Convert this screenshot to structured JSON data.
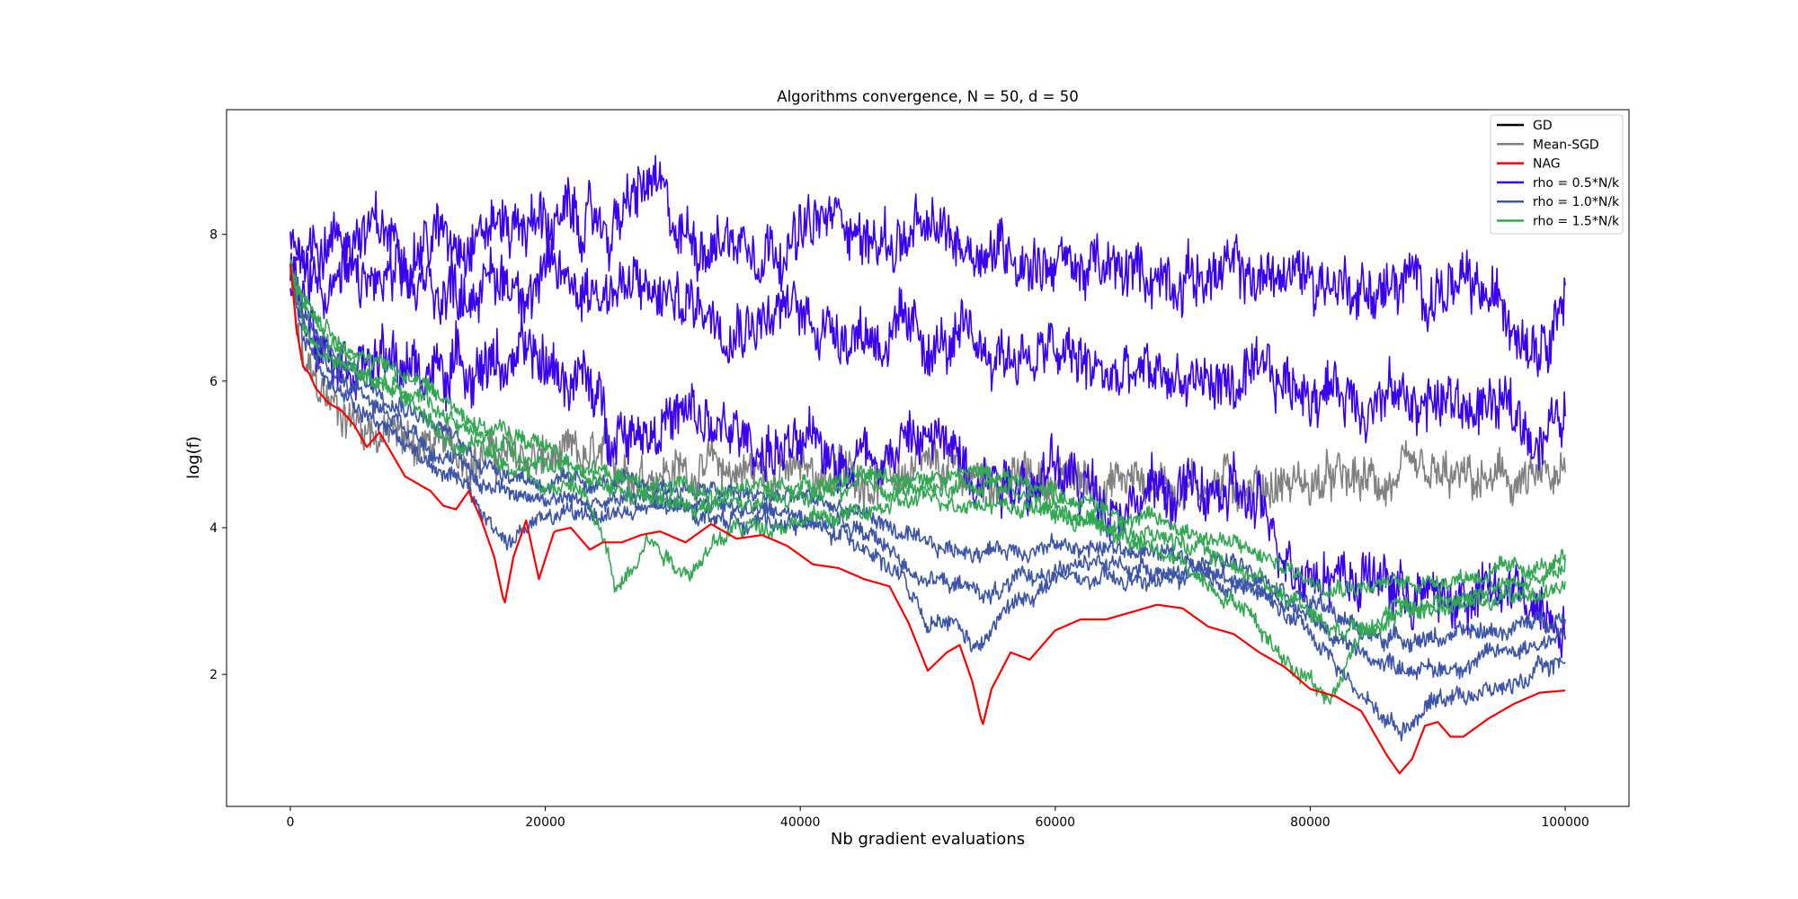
{
  "chart_data": {
    "type": "line",
    "title": "Algorithms convergence, N = 50, d = 50",
    "xlabel": "Nb gradient evaluations",
    "ylabel": "log(f)",
    "xlim": [
      -5000,
      105000
    ],
    "ylim": [
      0.2,
      9.7
    ],
    "xticks": [
      0,
      20000,
      40000,
      60000,
      80000,
      100000
    ],
    "xtick_labels": [
      "0",
      "20000",
      "40000",
      "60000",
      "80000",
      "100000"
    ],
    "yticks": [
      2,
      4,
      6,
      8
    ],
    "ytick_labels": [
      "2",
      "4",
      "6",
      "8"
    ],
    "grid": false,
    "legend_position": "top-right",
    "series": [
      {
        "name": "GD",
        "color": "#000000",
        "x": [],
        "y": []
      },
      {
        "name": "Mean-SGD",
        "color": "#808080",
        "x": [
          0,
          500,
          1000,
          2000,
          3000,
          5000,
          7000,
          10000,
          15000,
          20000,
          25000,
          30000,
          40000,
          50000,
          60000,
          70000,
          80000,
          90000,
          100000
        ],
        "y": [
          7.6,
          6.6,
          6.2,
          5.9,
          5.7,
          5.5,
          5.3,
          5.15,
          5.0,
          4.9,
          4.85,
          4.8,
          4.75,
          4.7,
          4.65,
          4.62,
          4.6,
          4.6,
          4.6
        ]
      },
      {
        "name": "NAG",
        "color": "#ff0000",
        "x": [
          0,
          500,
          1000,
          1500,
          2000,
          3000,
          4000,
          5000,
          6000,
          7000,
          8000,
          9000,
          10000,
          11000,
          12000,
          13000,
          14000,
          15000,
          16000,
          16800,
          17500,
          18500,
          19500,
          20700,
          22000,
          23500,
          24500,
          26000,
          27500,
          29000,
          31000,
          33000,
          35000,
          37000,
          39000,
          41000,
          43000,
          45000,
          47000,
          48500,
          50000,
          51500,
          52500,
          53500,
          54300,
          55000,
          56500,
          58000,
          60000,
          62000,
          64000,
          66000,
          68000,
          70000,
          72000,
          74000,
          76000,
          78000,
          80000,
          82000,
          84000,
          86000,
          87000,
          88000,
          89000,
          90000,
          91000,
          92000,
          94000,
          96000,
          98000,
          100000
        ],
        "y": [
          7.6,
          6.7,
          6.2,
          6.1,
          5.9,
          5.7,
          5.6,
          5.4,
          5.1,
          5.3,
          5.0,
          4.7,
          4.6,
          4.5,
          4.3,
          4.25,
          4.5,
          4.1,
          3.6,
          2.95,
          3.6,
          4.1,
          3.3,
          3.95,
          4.0,
          3.7,
          3.8,
          3.8,
          3.9,
          3.95,
          3.8,
          4.05,
          3.85,
          3.9,
          3.75,
          3.5,
          3.45,
          3.3,
          3.2,
          2.7,
          2.05,
          2.3,
          2.4,
          1.9,
          1.3,
          1.8,
          2.3,
          2.2,
          2.6,
          2.75,
          2.75,
          2.85,
          2.95,
          2.9,
          2.65,
          2.55,
          2.3,
          2.1,
          1.8,
          1.7,
          1.5,
          0.9,
          0.65,
          0.85,
          1.3,
          1.35,
          1.15,
          1.15,
          1.4,
          1.6,
          1.75,
          1.78
        ]
      },
      {
        "name": "rho = 0.5*N/k",
        "color": "#3a00f0",
        "x": [
          0,
          5000,
          10000,
          15000,
          20000,
          25000,
          28500,
          30000,
          35000,
          40000,
          44000,
          45000,
          50000,
          55000,
          60000,
          65000,
          70000,
          75000,
          80000,
          85000,
          90000,
          95000,
          98000,
          100000
        ],
        "y": [
          7.9,
          8.0,
          7.9,
          8.15,
          8.2,
          8.1,
          8.7,
          8.0,
          7.95,
          7.95,
          8.3,
          7.9,
          7.95,
          7.85,
          7.65,
          7.4,
          7.5,
          7.4,
          7.45,
          7.25,
          7.3,
          7.0,
          6.7,
          7.3
        ]
      },
      {
        "name": "rho = 0.5*N/k",
        "color": "#3a00f0",
        "x": [
          0,
          5000,
          10000,
          15000,
          20000,
          25000,
          30000,
          35000,
          40000,
          45000,
          50000,
          55000,
          60000,
          65000,
          70000,
          75000,
          80000,
          85000,
          90000,
          95000,
          98000,
          100000
        ],
        "y": [
          7.5,
          7.35,
          7.2,
          7.35,
          7.4,
          7.3,
          7.1,
          6.95,
          6.9,
          6.7,
          6.5,
          6.4,
          6.35,
          6.0,
          6.05,
          5.9,
          5.95,
          5.8,
          5.7,
          5.6,
          5.3,
          5.5
        ]
      },
      {
        "name": "rho = 0.5*N/k",
        "color": "#3a00f0",
        "x": [
          0,
          3000,
          6000,
          10000,
          15000,
          20000,
          23000,
          25000,
          30000,
          35000,
          40000,
          45000,
          50000,
          55000,
          60000,
          65000,
          70000,
          75000,
          77000,
          80000,
          85000,
          90000,
          95000,
          100000
        ],
        "y": [
          7.4,
          6.6,
          6.3,
          6.1,
          6.3,
          6.2,
          6.0,
          5.4,
          5.5,
          5.2,
          5.0,
          5.05,
          5.2,
          4.8,
          4.7,
          4.4,
          4.5,
          4.35,
          3.9,
          3.5,
          3.3,
          3.0,
          3.1,
          2.9
        ]
      },
      {
        "name": "rho = 1.0*N/k",
        "color": "#3c55a8",
        "x": [
          0,
          1000,
          3000,
          6000,
          10000,
          13000,
          15000,
          17000,
          20000,
          25000,
          30000,
          35000,
          40000,
          45000,
          48000,
          50000,
          52000,
          54000,
          56000,
          60000,
          65000,
          70000,
          75000,
          80000,
          84000,
          87000,
          90000,
          95000,
          100000
        ],
        "y": [
          7.5,
          6.6,
          6.0,
          5.6,
          5.0,
          4.7,
          4.2,
          3.8,
          4.15,
          4.2,
          4.25,
          4.1,
          4.05,
          3.8,
          3.3,
          2.6,
          2.7,
          2.3,
          2.85,
          3.3,
          3.25,
          3.3,
          3.2,
          2.6,
          1.7,
          1.25,
          1.7,
          1.8,
          2.2
        ]
      },
      {
        "name": "rho = 1.0*N/k",
        "color": "#3c55a8",
        "x": [
          0,
          1000,
          3000,
          6000,
          10000,
          15000,
          20000,
          25000,
          30000,
          35000,
          40000,
          45000,
          50000,
          55000,
          60000,
          65000,
          70000,
          75000,
          80000,
          85000,
          90000,
          95000,
          100000
        ],
        "y": [
          7.5,
          6.8,
          6.2,
          5.8,
          5.3,
          4.6,
          4.4,
          4.35,
          4.4,
          4.25,
          4.2,
          3.95,
          3.3,
          3.1,
          3.45,
          3.5,
          3.4,
          3.3,
          2.75,
          2.2,
          2.05,
          2.3,
          2.55
        ]
      },
      {
        "name": "rho = 1.0*N/k",
        "color": "#3c55a8",
        "x": [
          0,
          1000,
          3000,
          6000,
          10000,
          15000,
          20000,
          25000,
          30000,
          35000,
          40000,
          45000,
          50000,
          55000,
          60000,
          65000,
          70000,
          75000,
          80000,
          85000,
          90000,
          95000,
          100000
        ],
        "y": [
          7.6,
          6.9,
          6.4,
          6.0,
          5.6,
          4.9,
          4.6,
          4.6,
          4.55,
          4.45,
          4.4,
          4.2,
          3.7,
          3.7,
          3.75,
          3.7,
          3.6,
          3.5,
          3.0,
          2.5,
          2.5,
          2.6,
          2.8
        ]
      },
      {
        "name": "rho = 1.5*N/k",
        "color": "#33a852",
        "x": [
          0,
          1000,
          3000,
          6000,
          10000,
          13000,
          15000,
          20000,
          23000,
          25000,
          25500,
          28000,
          31000,
          35000,
          40000,
          45000,
          50000,
          55000,
          60000,
          65000,
          70000,
          75000,
          78000,
          80000,
          81500,
          84000,
          87000,
          90000,
          95000,
          100000
        ],
        "y": [
          7.6,
          6.8,
          6.3,
          6.0,
          5.7,
          5.0,
          5.1,
          4.6,
          4.5,
          3.6,
          3.1,
          3.9,
          3.4,
          4.0,
          4.1,
          4.2,
          4.4,
          4.35,
          4.2,
          3.9,
          3.5,
          2.9,
          2.2,
          2.0,
          1.6,
          2.6,
          2.8,
          2.9,
          3.0,
          3.2
        ]
      },
      {
        "name": "rho = 1.5*N/k",
        "color": "#33a852",
        "x": [
          0,
          1000,
          3000,
          6000,
          10000,
          15000,
          20000,
          25000,
          30000,
          35000,
          40000,
          45000,
          50000,
          55000,
          60000,
          65000,
          70000,
          75000,
          80000,
          82000,
          85000,
          90000,
          95000,
          100000
        ],
        "y": [
          7.6,
          7.0,
          6.5,
          6.1,
          5.8,
          5.2,
          4.9,
          4.5,
          4.3,
          4.3,
          4.4,
          4.55,
          4.5,
          4.6,
          4.3,
          4.0,
          3.8,
          3.4,
          2.9,
          2.6,
          2.8,
          3.0,
          3.2,
          3.4
        ]
      },
      {
        "name": "rho = 1.5*N/k",
        "color": "#33a852",
        "x": [
          0,
          1000,
          3000,
          6000,
          10000,
          15000,
          20000,
          25000,
          30000,
          35000,
          40000,
          45000,
          50000,
          55000,
          60000,
          65000,
          70000,
          75000,
          80000,
          85000,
          90000,
          95000,
          100000
        ],
        "y": [
          7.6,
          7.1,
          6.7,
          6.3,
          6.0,
          5.4,
          5.1,
          4.7,
          4.5,
          4.5,
          4.6,
          4.7,
          4.7,
          4.75,
          4.5,
          4.2,
          4.0,
          3.7,
          3.3,
          3.2,
          3.3,
          3.4,
          3.5
        ]
      }
    ],
    "legend": [
      {
        "label": "GD",
        "color": "#000000"
      },
      {
        "label": "Mean-SGD",
        "color": "#808080"
      },
      {
        "label": "NAG",
        "color": "#ff0000"
      },
      {
        "label": "rho = 0.5*N/k",
        "color": "#3a00f0"
      },
      {
        "label": "rho = 1.0*N/k",
        "color": "#3c55a8"
      },
      {
        "label": "rho = 1.5*N/k",
        "color": "#33a852"
      }
    ]
  }
}
